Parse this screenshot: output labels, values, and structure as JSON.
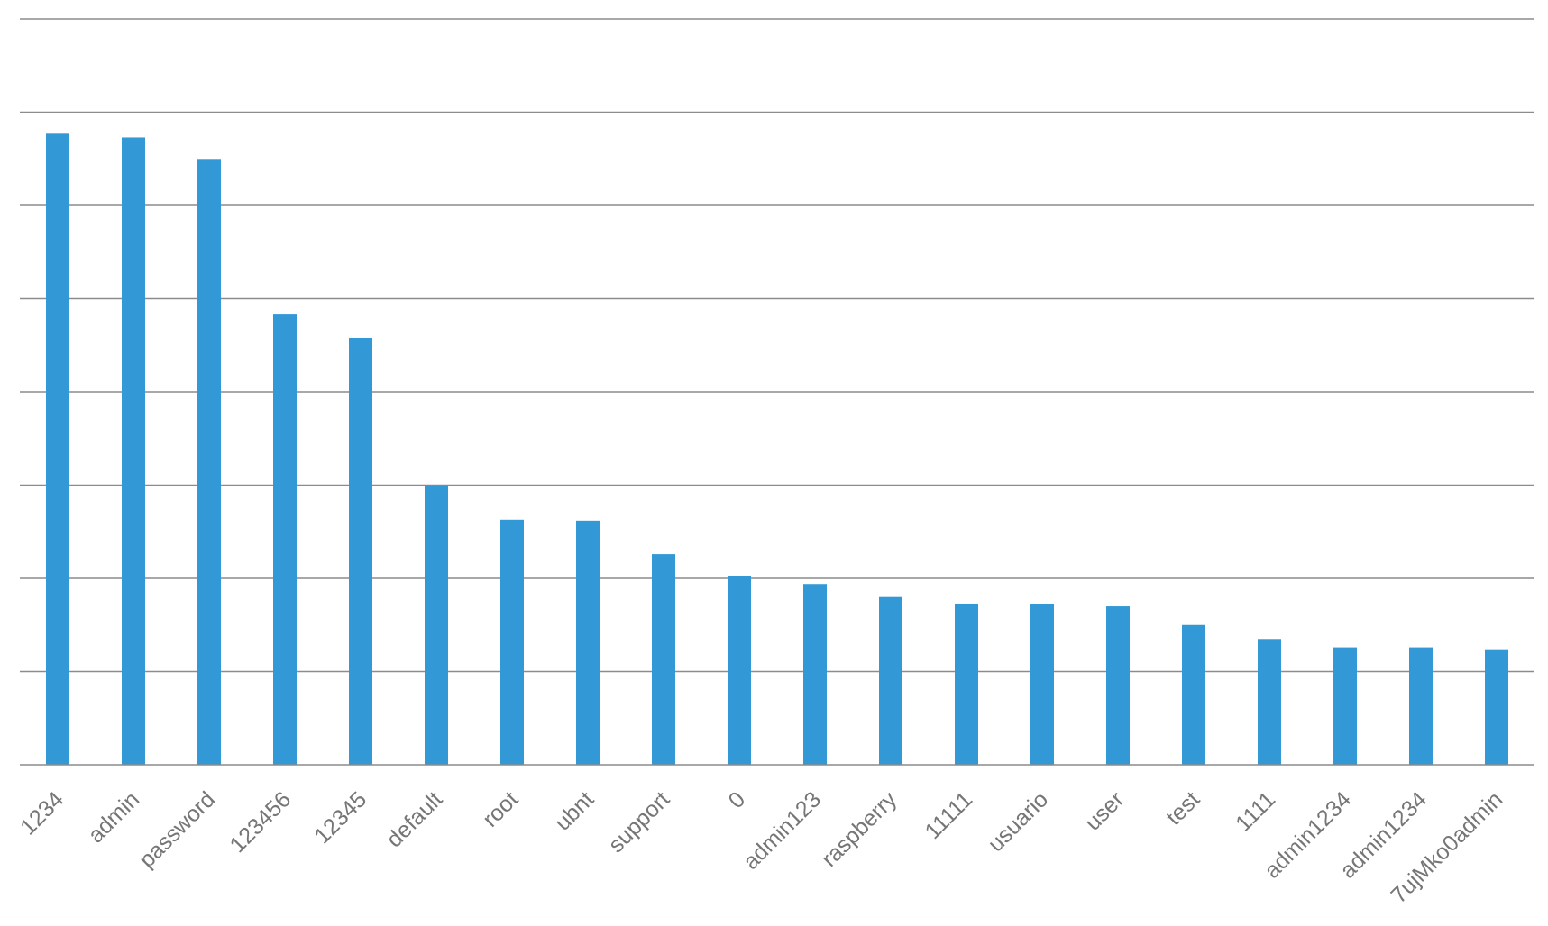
{
  "chart_data": {
    "type": "bar",
    "title": "",
    "xlabel": "",
    "ylabel": "",
    "categories": [
      "1234",
      "admin",
      "password",
      "123456",
      "12345",
      "default",
      "root",
      "ubnt",
      "support",
      "0",
      "admin123",
      "raspberry",
      "11111",
      "usuario",
      "user",
      "test",
      "1111",
      "admin1234",
      "admin1234",
      "7ujMko0admin"
    ],
    "values": [
      6.77,
      6.73,
      6.49,
      4.83,
      4.58,
      3.0,
      2.63,
      2.62,
      2.26,
      2.02,
      1.94,
      1.8,
      1.73,
      1.72,
      1.7,
      1.5,
      1.35,
      1.26,
      1.26,
      1.23
    ],
    "ylim": [
      0,
      8
    ],
    "gridlines_every": 1,
    "grid": true,
    "legend": "none",
    "y_tick_labels_shown": false,
    "bar_color": "#3399d6",
    "grid_color": "#8c8c8c",
    "label_color": "#767676"
  }
}
